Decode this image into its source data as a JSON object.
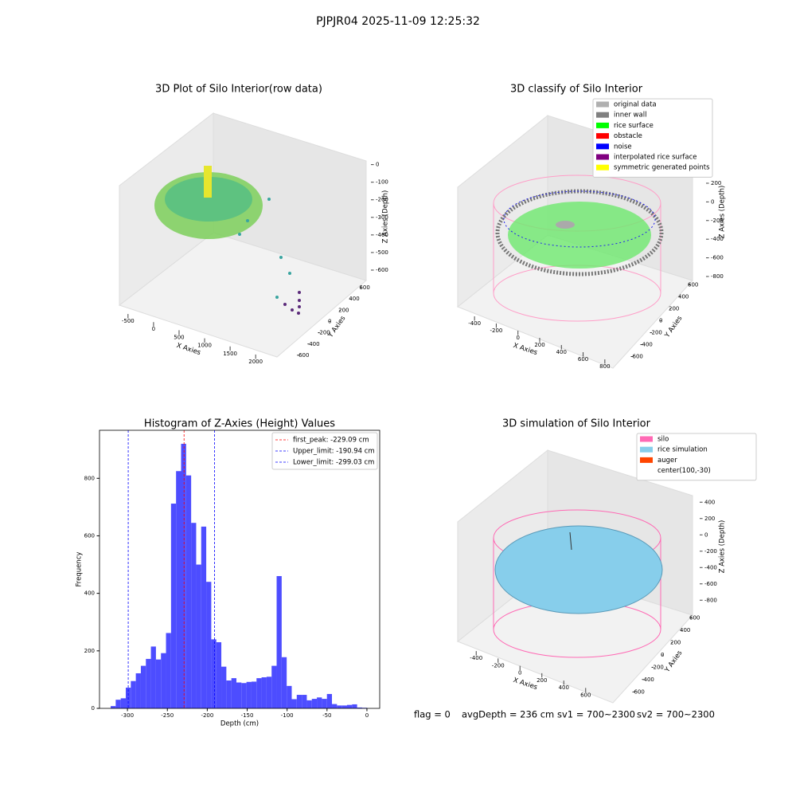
{
  "title": "PJPJR04 2025-11-09 12:25:32",
  "chart_data": [
    {
      "type": "scatter3d",
      "title": "3D Plot of Silo Interior(row data)",
      "xlabel": "X Axies",
      "ylabel": "Y Axies",
      "zlabel": "Z Axies (Depth)",
      "xlim": [
        -700,
        2200
      ],
      "xticks": [
        -500,
        0,
        500,
        1000,
        1500,
        2000
      ],
      "ylim": [
        -700,
        700
      ],
      "yticks": [
        -600,
        -400,
        -200,
        0,
        200,
        400,
        600
      ],
      "zlim": [
        -650,
        30
      ],
      "zticks": [
        0,
        -100,
        -200,
        -300,
        -400,
        -500,
        -600
      ]
    },
    {
      "type": "scatter3d",
      "title": "3D classify of Silo Interior",
      "xlabel": "X Axies",
      "ylabel": "Y Axies",
      "zlabel": "Z Axies (Depth)",
      "xlim": [
        -500,
        900
      ],
      "xticks": [
        -400,
        -200,
        0,
        200,
        400,
        600,
        800
      ],
      "ylim": [
        -700,
        700
      ],
      "yticks": [
        -600,
        -400,
        -200,
        0,
        200,
        400,
        600
      ],
      "zlim": [
        -900,
        350
      ],
      "zticks": [
        200,
        0,
        -200,
        -400,
        -600,
        -800
      ],
      "legend": [
        {
          "name": "original data",
          "color": "#b0b0b0"
        },
        {
          "name": "inner wall",
          "color": "#808080"
        },
        {
          "name": "rice surface",
          "color": "#00ff00"
        },
        {
          "name": "obstacle",
          "color": "#ff0000"
        },
        {
          "name": "noise",
          "color": "#0000ff"
        },
        {
          "name": "interpolated rice surface",
          "color": "#800080"
        },
        {
          "name": "symmetric generated points",
          "color": "#ffff00"
        }
      ]
    },
    {
      "type": "histogram",
      "title": "Histogram of Z-Axies (Height) Values",
      "xlabel": "Depth (cm)",
      "ylabel": "Frequency",
      "color": "#4d4dff",
      "bins": [
        -321,
        -314.7,
        -308.4,
        -302.1,
        -295.8,
        -289.5,
        -283.2,
        -276.9,
        -270.6,
        -264.3,
        -258,
        -251.7,
        -245.4,
        -239.1,
        -232.8,
        -226.5,
        -220.2,
        -213.9,
        -207.6,
        -201.3,
        -195,
        -188.7,
        -182.4,
        -176.1,
        -169.8,
        -163.5,
        -157.2,
        -150.9,
        -144.6,
        -138.3,
        -132,
        -125.7,
        -119.4,
        -113.1,
        -106.8,
        -100.5,
        -94.2,
        -87.9,
        -81.6,
        -75.3,
        -69,
        -62.7,
        -56.4,
        -50.1,
        -43.8,
        -37.5,
        -31.2,
        -24.9,
        -18.6,
        -12.3,
        -6,
        0.3
      ],
      "counts": [
        8,
        30,
        35,
        72,
        95,
        122,
        148,
        172,
        215,
        170,
        192,
        262,
        712,
        825,
        920,
        810,
        645,
        500,
        632,
        440,
        240,
        230,
        145,
        97,
        105,
        90,
        88,
        92,
        93,
        105,
        108,
        110,
        148,
        460,
        178,
        78,
        32,
        47,
        47,
        28,
        33,
        38,
        33,
        50,
        15,
        10,
        10,
        12,
        14,
        3,
        2
      ],
      "xlim": [
        -335,
        16
      ],
      "xticks": [
        -300,
        -250,
        -200,
        -150,
        -100,
        -50,
        0
      ],
      "ylim": [
        0,
        967
      ],
      "yticks": [
        0,
        200,
        400,
        600,
        800
      ],
      "lines": [
        {
          "name": "first_peak: -229.09 cm",
          "value": -229.09,
          "color": "#ff0000"
        },
        {
          "name": "Upper_limit: -190.94 cm",
          "value": -190.94,
          "color": "#0000ff"
        },
        {
          "name": "Lower_limit: -299.03 cm",
          "value": -299.03,
          "color": "#0000ff"
        }
      ]
    },
    {
      "type": "surface3d",
      "title": "3D simulation of Silo Interior",
      "xlabel": "X Axies",
      "ylabel": "Y Axies",
      "zlabel": "Z Axies (Depth)",
      "xlim": [
        -500,
        700
      ],
      "xticks": [
        -400,
        -200,
        0,
        200,
        400,
        600
      ],
      "ylim": [
        -700,
        700
      ],
      "yticks": [
        -600,
        -400,
        -200,
        0,
        200,
        400,
        600
      ],
      "zlim": [
        -900,
        500
      ],
      "zticks": [
        400,
        200,
        0,
        -200,
        -400,
        -600,
        -800
      ],
      "legend": [
        {
          "name": "silo",
          "color": "#ff69b4"
        },
        {
          "name": "rice simulation",
          "color": "#87ceeb"
        },
        {
          "name": "auger",
          "color": "#ff4500"
        },
        {
          "name": "center(100,-30)"
        }
      ]
    }
  ],
  "footer": [
    "flag = 0",
    "avgDepth = 236 cm",
    "sv1 = 700~2300",
    "sv2 = 700~2300"
  ]
}
